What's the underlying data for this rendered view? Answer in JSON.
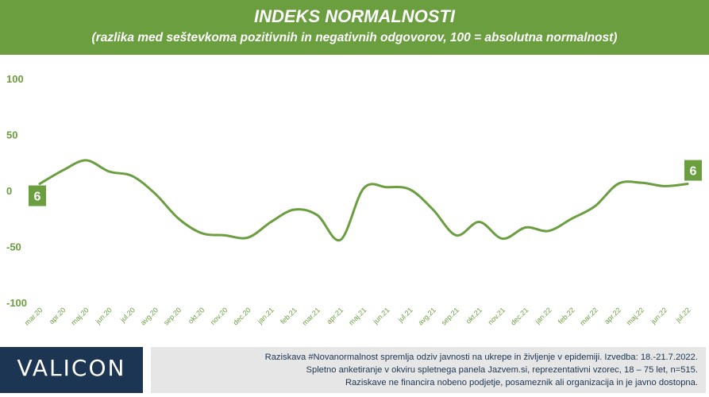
{
  "header": {
    "title": "INDEKS NORMALNOSTI",
    "subtitle": "(razlika med seštevkoma pozitivnih in negativnih odgovorov, 100 = absolutna normalnost)"
  },
  "chart_data": {
    "type": "line",
    "categories": [
      "mar.20",
      "apr.20",
      "maj.20",
      "jun.20",
      "jul.20",
      "avg.20",
      "sep.20",
      "okt.20",
      "nov.20",
      "dec.20",
      "jan.21",
      "feb.21",
      "mar.21",
      "apr.21",
      "maj.21",
      "jun.21",
      "jul.21",
      "avg.21",
      "sep.21",
      "okt.21",
      "nov.21",
      "dec.21",
      "jan.22",
      "feb.22",
      "mar.22",
      "apr.22",
      "maj.22",
      "jun.22",
      "jul.22"
    ],
    "values": [
      6,
      18,
      27,
      17,
      13,
      -3,
      -25,
      -38,
      -40,
      -42,
      -28,
      -17,
      -22,
      -44,
      2,
      3,
      1,
      -17,
      -40,
      -28,
      -43,
      -33,
      -36,
      -25,
      -14,
      6,
      7,
      4,
      6
    ],
    "ylim": [
      -100,
      100
    ],
    "yticks": [
      100,
      50,
      0,
      -50,
      -100
    ],
    "line_color": "#6a9e3f",
    "data_labels": [
      {
        "index": 0,
        "text": "6"
      },
      {
        "index": 28,
        "text": "6"
      }
    ]
  },
  "footer": {
    "logo": "VALICON",
    "lines": [
      "Raziskava #Novanormalnost spremlja odziv javnosti na ukrepe in življenje v epidemiji. Izvedba: 18.-21.7.2022.",
      "Spletno anketiranje v okviru spletnega panela Jazvem.si, reprezentativni vzorec, 18 – 75 let, n=515.",
      "Raziskave ne financira nobeno podjetje, posameznik ali organizacija in je javno dostopna."
    ]
  }
}
